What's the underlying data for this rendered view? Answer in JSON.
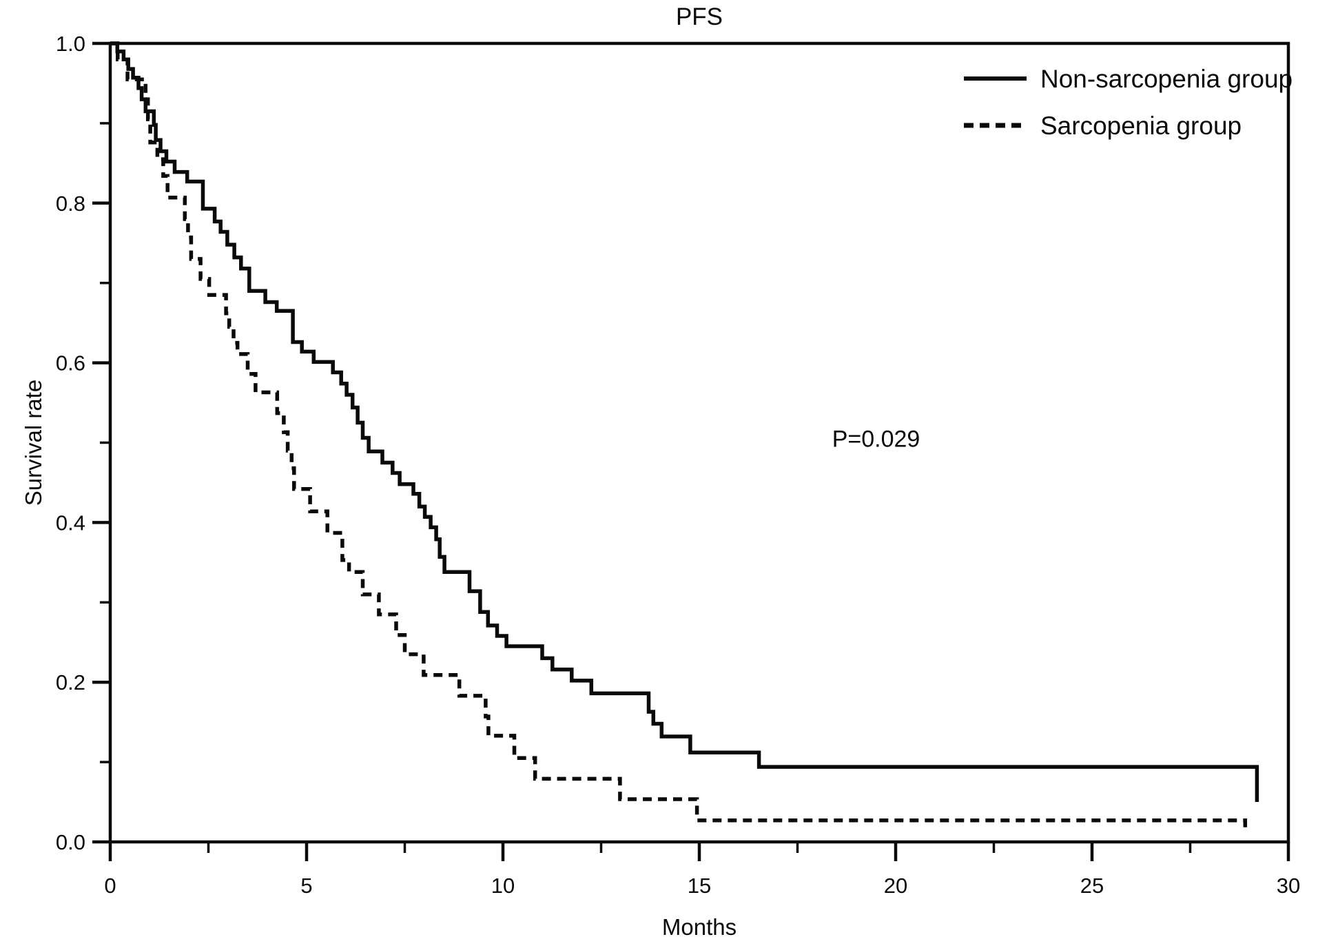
{
  "figure": {
    "title": "PFS",
    "x_axis": {
      "label": "Months",
      "tick_labels": [
        "0",
        "5",
        "10",
        "15",
        "20",
        "25",
        "30"
      ]
    },
    "y_axis": {
      "label": "Survival rate",
      "tick_labels": [
        "1.0",
        "0.8",
        "0.6",
        "0.4",
        "0.2",
        "0.0"
      ]
    },
    "colors": {
      "ink": "#0a0a0a",
      "background": "#ffffff"
    }
  },
  "chart_data": {
    "type": "line",
    "subtype": "kaplan-meier-step",
    "title": "PFS",
    "xlabel": "Months",
    "ylabel": "Survival rate",
    "xlim": [
      0,
      30
    ],
    "ylim": [
      0,
      1
    ],
    "grid": false,
    "legend_position": "top-right-inside",
    "x_major_ticks": [
      0,
      5,
      10,
      15,
      20,
      25,
      30
    ],
    "x_minor_ticks": [
      2.5,
      7.5,
      12.5,
      17.5,
      22.5,
      27.5
    ],
    "y_major_ticks": [
      1.0,
      0.8,
      0.6,
      0.4,
      0.2,
      0.0
    ],
    "y_minor_ticks": [
      0.9,
      0.7,
      0.5,
      0.3,
      0.1
    ],
    "annotations": [
      {
        "text": "P=0.029",
        "x": 19.5,
        "y": 0.505
      }
    ],
    "series": [
      {
        "name": "Non-sarcopenia group",
        "line": "solid",
        "color": "#0a0a0a",
        "steps": [
          [
            0,
            1.0
          ],
          [
            0.18,
            0.99
          ],
          [
            0.34,
            0.98
          ],
          [
            0.46,
            0.968
          ],
          [
            0.58,
            0.957
          ],
          [
            0.72,
            0.944
          ],
          [
            0.8,
            0.93
          ],
          [
            0.9,
            0.915
          ],
          [
            1.11,
            0.898
          ],
          [
            1.16,
            0.879
          ],
          [
            1.28,
            0.865
          ],
          [
            1.43,
            0.852
          ],
          [
            1.64,
            0.839
          ],
          [
            1.96,
            0.827
          ],
          [
            2.36,
            0.793
          ],
          [
            2.66,
            0.777
          ],
          [
            2.81,
            0.764
          ],
          [
            2.98,
            0.748
          ],
          [
            3.16,
            0.732
          ],
          [
            3.33,
            0.718
          ],
          [
            3.54,
            0.69
          ],
          [
            3.95,
            0.676
          ],
          [
            4.24,
            0.665
          ],
          [
            4.65,
            0.626
          ],
          [
            4.88,
            0.614
          ],
          [
            5.18,
            0.601
          ],
          [
            5.67,
            0.588
          ],
          [
            5.88,
            0.574
          ],
          [
            6.02,
            0.56
          ],
          [
            6.17,
            0.544
          ],
          [
            6.3,
            0.525
          ],
          [
            6.43,
            0.506
          ],
          [
            6.58,
            0.489
          ],
          [
            6.93,
            0.475
          ],
          [
            7.19,
            0.462
          ],
          [
            7.37,
            0.448
          ],
          [
            7.72,
            0.436
          ],
          [
            7.87,
            0.42
          ],
          [
            8.01,
            0.407
          ],
          [
            8.16,
            0.394
          ],
          [
            8.3,
            0.379
          ],
          [
            8.39,
            0.357
          ],
          [
            8.51,
            0.338
          ],
          [
            9.15,
            0.314
          ],
          [
            9.42,
            0.288
          ],
          [
            9.62,
            0.271
          ],
          [
            9.85,
            0.258
          ],
          [
            10.09,
            0.245
          ],
          [
            11.0,
            0.23
          ],
          [
            11.26,
            0.216
          ],
          [
            11.75,
            0.202
          ],
          [
            12.25,
            0.186
          ],
          [
            13.71,
            0.163
          ],
          [
            13.83,
            0.148
          ],
          [
            14.04,
            0.132
          ],
          [
            14.77,
            0.112
          ],
          [
            16.52,
            0.094
          ],
          [
            29.2,
            0.05
          ]
        ]
      },
      {
        "name": "Sarcopenia group",
        "line": "dashed",
        "color": "#0a0a0a",
        "steps": [
          [
            0,
            1.0
          ],
          [
            0.19,
            0.98
          ],
          [
            0.44,
            0.955
          ],
          [
            0.9,
            0.93
          ],
          [
            0.96,
            0.905
          ],
          [
            1.02,
            0.876
          ],
          [
            1.2,
            0.855
          ],
          [
            1.35,
            0.834
          ],
          [
            1.46,
            0.807
          ],
          [
            1.9,
            0.78
          ],
          [
            1.98,
            0.757
          ],
          [
            2.06,
            0.73
          ],
          [
            2.3,
            0.705
          ],
          [
            2.52,
            0.685
          ],
          [
            2.95,
            0.662
          ],
          [
            3.03,
            0.645
          ],
          [
            3.14,
            0.625
          ],
          [
            3.24,
            0.611
          ],
          [
            3.5,
            0.586
          ],
          [
            3.7,
            0.563
          ],
          [
            4.25,
            0.537
          ],
          [
            4.42,
            0.513
          ],
          [
            4.52,
            0.49
          ],
          [
            4.62,
            0.468
          ],
          [
            4.68,
            0.442
          ],
          [
            5.09,
            0.414
          ],
          [
            5.53,
            0.387
          ],
          [
            5.91,
            0.353
          ],
          [
            6.08,
            0.338
          ],
          [
            6.43,
            0.31
          ],
          [
            6.84,
            0.285
          ],
          [
            7.28,
            0.259
          ],
          [
            7.5,
            0.235
          ],
          [
            7.98,
            0.209
          ],
          [
            8.89,
            0.183
          ],
          [
            9.56,
            0.157
          ],
          [
            9.63,
            0.133
          ],
          [
            10.29,
            0.105
          ],
          [
            10.82,
            0.079
          ],
          [
            12.98,
            0.0535
          ],
          [
            14.94,
            0.027
          ],
          [
            28.9,
            0.013
          ]
        ]
      }
    ]
  }
}
